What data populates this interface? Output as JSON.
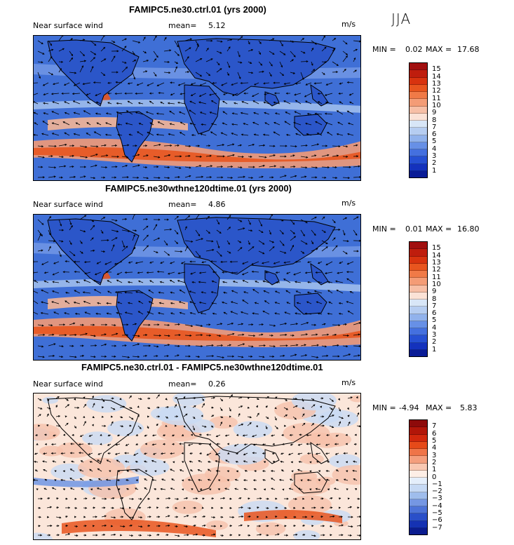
{
  "season": "JJA",
  "units": "m/s",
  "panels": [
    {
      "title": "FAMIPC5.ne30.ctrl.01 (yrs 2000)",
      "variable": "Near surface wind",
      "mean_label": "mean=",
      "mean_value": "5.12",
      "min_label": "MIN =",
      "min_value": "0.02",
      "max_label": "MAX =",
      "max_value": "17.68",
      "colorbar": {
        "levels": [
          "15",
          "14",
          "13",
          "12",
          "11",
          "10",
          "9",
          "8",
          "7",
          "6",
          "5",
          "4",
          "3",
          "2",
          "1"
        ],
        "colors": [
          "#a10f0f",
          "#bf1d0d",
          "#d8330f",
          "#e8551f",
          "#f07a47",
          "#f49c76",
          "#f7bfa6",
          "#fbe2d6",
          "#d8e6f7",
          "#b6cdf1",
          "#91b2ec",
          "#6790e6",
          "#4470df",
          "#2650d3",
          "#1432bd",
          "#0a1c96"
        ]
      }
    },
    {
      "title": "FAMIPC5.ne30wthne120dtime.01 (yrs 2000)",
      "variable": "Near surface wind",
      "mean_label": "mean=",
      "mean_value": "4.86",
      "min_label": "MIN =",
      "min_value": "0.01",
      "max_label": "MAX =",
      "max_value": "16.80",
      "colorbar": {
        "levels": [
          "15",
          "14",
          "13",
          "12",
          "11",
          "10",
          "9",
          "8",
          "7",
          "6",
          "5",
          "4",
          "3",
          "2",
          "1"
        ],
        "colors": [
          "#a10f0f",
          "#bf1d0d",
          "#d8330f",
          "#e8551f",
          "#f07a47",
          "#f49c76",
          "#f7bfa6",
          "#fbe2d6",
          "#d8e6f7",
          "#b6cdf1",
          "#91b2ec",
          "#6790e6",
          "#4470df",
          "#2650d3",
          "#1432bd",
          "#0a1c96"
        ]
      }
    },
    {
      "title": "FAMIPC5.ne30.ctrl.01 - FAMIPC5.ne30wthne120dtime.01",
      "variable": "Near surface wind",
      "mean_label": "mean=",
      "mean_value": "0.26",
      "min_label": "MIN =",
      "min_value": "-4.94",
      "max_label": "MAX =",
      "max_value": "5.83",
      "colorbar": {
        "levels": [
          "7",
          "6",
          "5",
          "4",
          "3",
          "2",
          "1",
          "0",
          "−1",
          "−2",
          "−3",
          "−4",
          "−5",
          "−6",
          "−7"
        ],
        "colors": [
          "#8e0a0a",
          "#b21609",
          "#d2280d",
          "#e64a19",
          "#ef7448",
          "#f49e7d",
          "#f9c8b2",
          "#fdeee6",
          "#e4eefb",
          "#c6d9f4",
          "#9fbdec",
          "#7597e3",
          "#4d73d8",
          "#2a4fc9",
          "#1532b3",
          "#0b1c8f"
        ]
      }
    }
  ]
}
